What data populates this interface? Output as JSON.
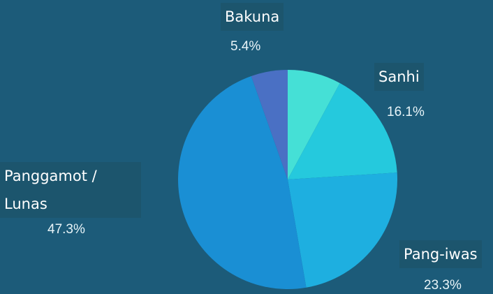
{
  "chart_data": {
    "type": "pie",
    "categories": [
      null,
      "Sanhi",
      "Pang-iwas",
      "Panggamot / Lunas",
      "Bakuna"
    ],
    "values": [
      7.9,
      16.1,
      23.3,
      47.3,
      5.4
    ],
    "value_labels": [
      null,
      "16.1%",
      "23.3%",
      "47.3%",
      "5.4%"
    ],
    "colors": [
      "#45e0d6",
      "#25c9dd",
      "#1eafe0",
      "#1a8fd4",
      "#4a70c4"
    ]
  }
}
